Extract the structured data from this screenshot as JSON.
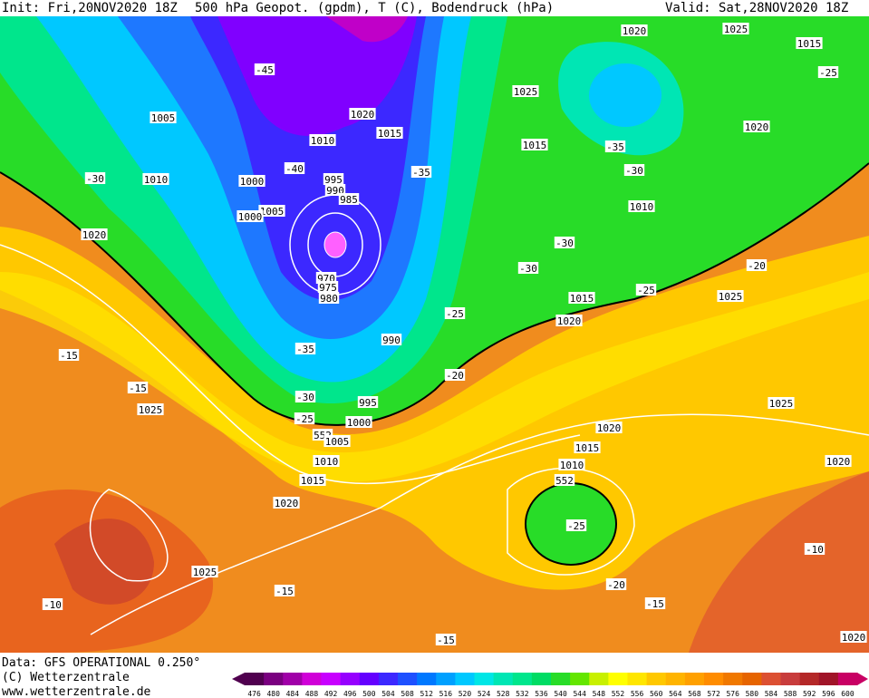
{
  "header": {
    "init": "Init: Fri,20NOV2020 18Z",
    "title": "500 hPa Geopot. (gpdm), T (C), Bodendruck (hPa)",
    "valid": "Valid: Sat,28NOV2020 18Z"
  },
  "footer": {
    "data": "Data: GFS OPERATIONAL 0.250°",
    "copyright": "(C) Wetterzentrale",
    "website": "www.wetterzentrale.de"
  },
  "map": {
    "labels": [
      "1020",
      "1025",
      "1015",
      "-45",
      "-25",
      "1025",
      "1020",
      "1005",
      "1010",
      "1015",
      "1015",
      "-35",
      "1020",
      "-30",
      "-40",
      "-35",
      "995",
      "990",
      "985",
      "1000",
      "1010",
      "-30",
      "1005",
      "1000",
      "1010",
      "1020",
      "-30",
      "-30",
      "-20",
      "-25",
      "1025",
      "970",
      "975",
      "980",
      "1015",
      "1020",
      "-25",
      "990",
      "-35",
      "-15",
      "-20",
      "-15",
      "-30",
      "1025",
      "995",
      "1025",
      "-25",
      "1000",
      "1020",
      "552",
      "1005",
      "1015",
      "1010",
      "1010",
      "1020",
      "552",
      "1015",
      "1020",
      "-25",
      "-10",
      "1025",
      "-15",
      "-20",
      "-15",
      "-10",
      "-15",
      "1020"
    ]
  },
  "colorbar": {
    "labels": [
      "476",
      "480",
      "484",
      "488",
      "492",
      "496",
      "500",
      "504",
      "508",
      "512",
      "516",
      "520",
      "524",
      "528",
      "532",
      "536",
      "540",
      "544",
      "548",
      "552",
      "556",
      "560",
      "564",
      "568",
      "572",
      "576",
      "580",
      "584",
      "588",
      "592",
      "596",
      "600"
    ],
    "colors": [
      "#50004f",
      "#7a0080",
      "#a000a8",
      "#d000d8",
      "#c800ff",
      "#9600ff",
      "#6400ff",
      "#3c28ff",
      "#1e50ff",
      "#0078ff",
      "#00a0ff",
      "#00c8ff",
      "#00e6e6",
      "#00e6b4",
      "#00e68c",
      "#00dc64",
      "#28dc28",
      "#64e600",
      "#c8f000",
      "#ffff00",
      "#ffe600",
      "#ffc800",
      "#ffb400",
      "#ffa000",
      "#ff8c00",
      "#f07800",
      "#e66400",
      "#dc5032",
      "#c83c3c",
      "#b42828",
      "#a01428",
      "#c80064"
    ]
  }
}
